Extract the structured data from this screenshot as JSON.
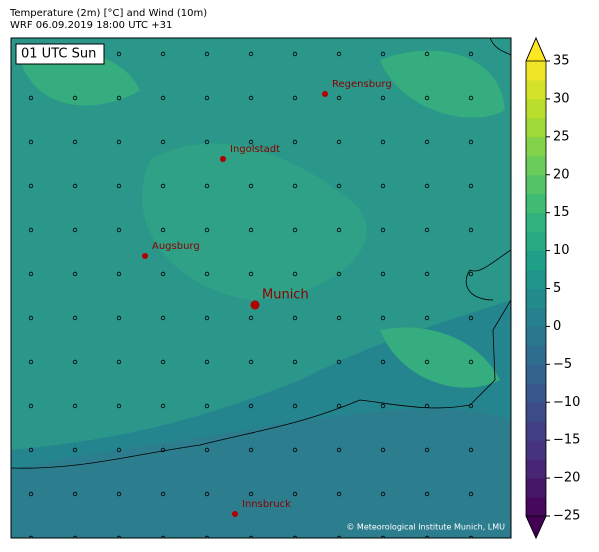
{
  "header": {
    "title": "Temperature (2m) [°C] and Wind (10m)",
    "subtitle": "WRF 06.09.2019 18:00 UTC +31"
  },
  "map": {
    "time_label": "01 UTC Sun",
    "cities": [
      "Regensburg",
      "Ingolstadt",
      "Augsburg",
      "Munich",
      "Innsbruck"
    ],
    "copyright": "© Meteorological Institute Munich, LMU"
  },
  "colorbar": {
    "colormap": "viridis",
    "lim": [
      -25,
      35
    ],
    "ticks": [
      {
        "value": -25,
        "label": "−25"
      },
      {
        "value": -20,
        "label": "−20"
      },
      {
        "value": -15,
        "label": "−15"
      },
      {
        "value": -10,
        "label": "−10"
      },
      {
        "value": -5,
        "label": "−5"
      },
      0,
      5,
      10,
      15,
      20,
      25,
      30,
      35
    ]
  }
}
